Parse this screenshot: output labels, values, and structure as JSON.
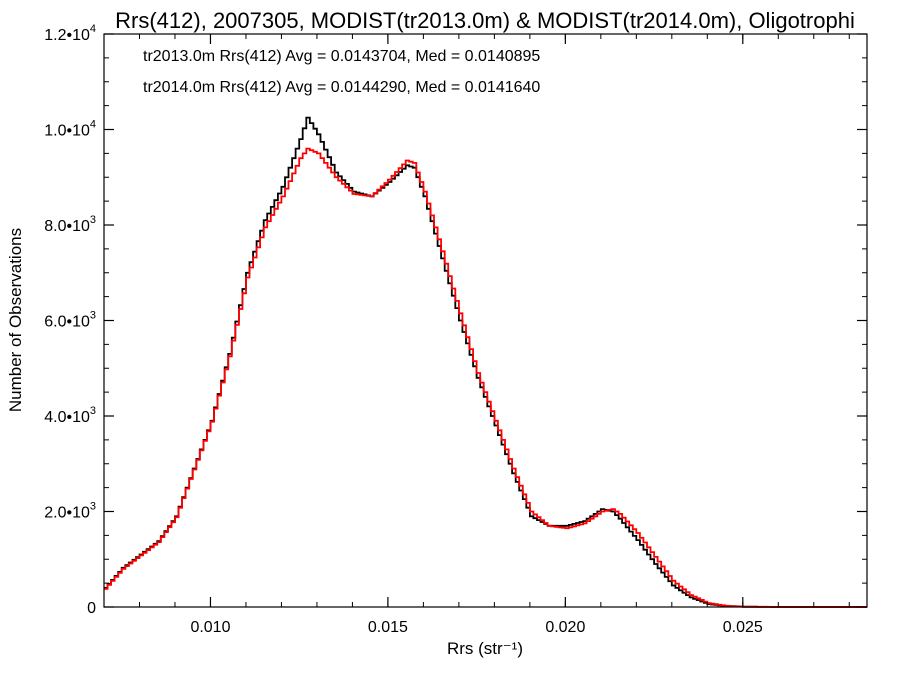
{
  "chart_data": {
    "type": "line",
    "title": "Rrs(412), 2007305, MODIST(tr2013.0m) & MODIST(tr2014.0m), Oligotrophi",
    "xlabel": "Rrs (str⁻¹)",
    "ylabel": "Number of Observations",
    "xlim": [
      0.007,
      0.0285
    ],
    "ylim": [
      0,
      12000
    ],
    "grid": false,
    "legend_position": "top-left",
    "x_ticks": [
      {
        "value": 0.01,
        "label": "0.010"
      },
      {
        "value": 0.015,
        "label": "0.015"
      },
      {
        "value": 0.02,
        "label": "0.020"
      },
      {
        "value": 0.025,
        "label": "0.025"
      }
    ],
    "y_ticks": [
      {
        "value": 0,
        "mantissa": "0",
        "exp": ""
      },
      {
        "value": 2000,
        "mantissa": "2.0•10",
        "exp": "3"
      },
      {
        "value": 4000,
        "mantissa": "4.0•10",
        "exp": "3"
      },
      {
        "value": 6000,
        "mantissa": "6.0•10",
        "exp": "3"
      },
      {
        "value": 8000,
        "mantissa": "8.0•10",
        "exp": "3"
      },
      {
        "value": 10000,
        "mantissa": "1.0•10",
        "exp": "4"
      },
      {
        "value": 12000,
        "mantissa": "1.2•10",
        "exp": "4"
      }
    ],
    "series": [
      {
        "label": "tr2013.0m Rrs(412) Avg = 0.0143704, Med = 0.0140895",
        "color": "#000000",
        "points": [
          [
            0.007,
            400
          ],
          [
            0.0075,
            820
          ],
          [
            0.008,
            1100
          ],
          [
            0.0085,
            1380
          ],
          [
            0.009,
            1900
          ],
          [
            0.0095,
            2900
          ],
          [
            0.01,
            3900
          ],
          [
            0.0105,
            5300
          ],
          [
            0.011,
            7000
          ],
          [
            0.0115,
            8100
          ],
          [
            0.012,
            8800
          ],
          [
            0.0125,
            9800
          ],
          [
            0.0127,
            10250
          ],
          [
            0.013,
            9900
          ],
          [
            0.0135,
            9100
          ],
          [
            0.014,
            8700
          ],
          [
            0.0145,
            8600
          ],
          [
            0.015,
            8900
          ],
          [
            0.0155,
            9250
          ],
          [
            0.0157,
            9200
          ],
          [
            0.016,
            8600
          ],
          [
            0.0165,
            7300
          ],
          [
            0.017,
            6000
          ],
          [
            0.0175,
            4800
          ],
          [
            0.018,
            3800
          ],
          [
            0.0185,
            2800
          ],
          [
            0.019,
            1900
          ],
          [
            0.0195,
            1700
          ],
          [
            0.02,
            1700
          ],
          [
            0.0205,
            1800
          ],
          [
            0.021,
            2050
          ],
          [
            0.0213,
            2000
          ],
          [
            0.0215,
            1850
          ],
          [
            0.022,
            1400
          ],
          [
            0.0225,
            900
          ],
          [
            0.023,
            450
          ],
          [
            0.0235,
            200
          ],
          [
            0.024,
            60
          ],
          [
            0.0245,
            20
          ],
          [
            0.025,
            5
          ],
          [
            0.026,
            0
          ],
          [
            0.0285,
            0
          ]
        ]
      },
      {
        "label": "tr2014.0m Rrs(412) Avg = 0.0144290, Med = 0.0141640",
        "color": "#ff0000",
        "points": [
          [
            0.007,
            380
          ],
          [
            0.0075,
            800
          ],
          [
            0.008,
            1080
          ],
          [
            0.0085,
            1360
          ],
          [
            0.009,
            1880
          ],
          [
            0.0095,
            2880
          ],
          [
            0.01,
            3880
          ],
          [
            0.0105,
            5250
          ],
          [
            0.011,
            6900
          ],
          [
            0.0115,
            7950
          ],
          [
            0.012,
            8600
          ],
          [
            0.0125,
            9400
          ],
          [
            0.0127,
            9600
          ],
          [
            0.013,
            9500
          ],
          [
            0.0135,
            9000
          ],
          [
            0.014,
            8650
          ],
          [
            0.0145,
            8600
          ],
          [
            0.015,
            8950
          ],
          [
            0.0155,
            9350
          ],
          [
            0.0157,
            9300
          ],
          [
            0.016,
            8700
          ],
          [
            0.0165,
            7450
          ],
          [
            0.017,
            6150
          ],
          [
            0.0175,
            4900
          ],
          [
            0.018,
            3900
          ],
          [
            0.0185,
            2900
          ],
          [
            0.019,
            2000
          ],
          [
            0.0195,
            1700
          ],
          [
            0.02,
            1650
          ],
          [
            0.0205,
            1750
          ],
          [
            0.021,
            2000
          ],
          [
            0.0213,
            2050
          ],
          [
            0.0215,
            1950
          ],
          [
            0.022,
            1550
          ],
          [
            0.0225,
            1050
          ],
          [
            0.023,
            550
          ],
          [
            0.0235,
            250
          ],
          [
            0.024,
            80
          ],
          [
            0.0245,
            25
          ],
          [
            0.025,
            8
          ],
          [
            0.026,
            0
          ],
          [
            0.0285,
            0
          ]
        ]
      }
    ]
  }
}
